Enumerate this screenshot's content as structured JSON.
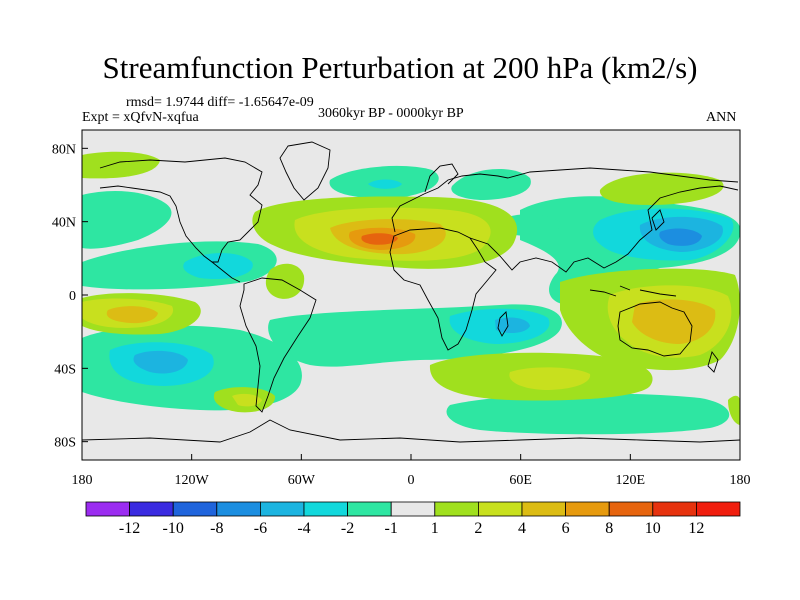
{
  "chart_data": {
    "type": "contour-map",
    "title": "Streamfunction Perturbation at 200 hPa (km2/s)",
    "stats_label": "rmsd= 1.9744 diff= -1.65647e-09",
    "experiment_label": "Expt = xQfvN-xqfua",
    "period_label": "3060kyr BP - 0000kyr BP",
    "season_label": "ANN",
    "x_ticks": [
      {
        "lon": -180,
        "label": "180"
      },
      {
        "lon": -120,
        "label": "120W"
      },
      {
        "lon": -60,
        "label": "60W"
      },
      {
        "lon": 0,
        "label": "0"
      },
      {
        "lon": 60,
        "label": "60E"
      },
      {
        "lon": 120,
        "label": "120E"
      },
      {
        "lon": 180,
        "label": "180"
      }
    ],
    "y_ticks": [
      {
        "lat": 80,
        "label": "80N"
      },
      {
        "lat": 40,
        "label": "40N"
      },
      {
        "lat": 0,
        "label": "0"
      },
      {
        "lat": -40,
        "label": "40S"
      },
      {
        "lat": -80,
        "label": "80S"
      }
    ],
    "xlim": [
      -180,
      180
    ],
    "ylim": [
      -90,
      90
    ],
    "colorbar": {
      "levels": [
        "-12",
        "-10",
        "-8",
        "-6",
        "-4",
        "-2",
        "-1",
        "1",
        "2",
        "4",
        "6",
        "8",
        "10",
        "12"
      ],
      "colors": [
        "#9b2cf0",
        "#3a2be0",
        "#1f64dc",
        "#1c8ee0",
        "#1cb4e0",
        "#12d8dc",
        "#2ee6a2",
        "#e8e8e8",
        "#a0e01e",
        "#c8e01e",
        "#dcbc14",
        "#e69a0e",
        "#e6640e",
        "#e6320e",
        "#f01e0e"
      ]
    },
    "anomalies": [
      {
        "name": "subtropical-atlantic-africa-high",
        "lon": -10,
        "lat": 28,
        "value": 9
      },
      {
        "name": "north-pacific-low",
        "lon": 152,
        "lat": 30,
        "value": -8
      },
      {
        "name": "south-pacific-low",
        "lon": -130,
        "lat": -35,
        "value": -6
      },
      {
        "name": "southern-indian-low",
        "lon": 40,
        "lat": -15,
        "value": -3.5
      },
      {
        "name": "east-pacific-high",
        "lon": -155,
        "lat": -15,
        "value": 4.5
      },
      {
        "name": "australia-high",
        "lon": 140,
        "lat": -22,
        "value": 4
      },
      {
        "name": "southern-ocean-high",
        "lon": 40,
        "lat": -45,
        "value": 2
      },
      {
        "name": "north-atlantic-low",
        "lon": -15,
        "lat": 62,
        "value": -2
      },
      {
        "name": "north-america-low",
        "lon": -110,
        "lat": 18,
        "value": -3
      }
    ]
  }
}
